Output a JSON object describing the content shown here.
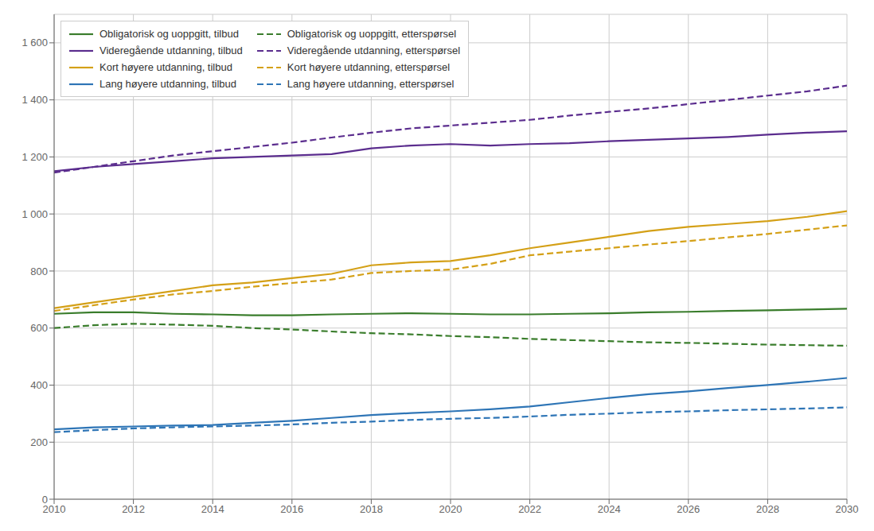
{
  "chart_data": {
    "type": "line",
    "x": [
      2010,
      2011,
      2012,
      2013,
      2014,
      2015,
      2016,
      2017,
      2018,
      2019,
      2020,
      2021,
      2022,
      2023,
      2024,
      2025,
      2026,
      2027,
      2028,
      2029,
      2030
    ],
    "series": [
      {
        "name": "Obligatorisk og uoppgitt, tilbud",
        "color": "#3a7d2c",
        "line_style": "solid",
        "values": [
          650,
          655,
          655,
          650,
          648,
          645,
          645,
          648,
          650,
          652,
          650,
          648,
          648,
          650,
          652,
          655,
          657,
          660,
          662,
          665,
          668
        ]
      },
      {
        "name": "Videregående utdanning, tilbud",
        "color": "#5b2d8e",
        "line_style": "solid",
        "values": [
          1150,
          1165,
          1175,
          1185,
          1195,
          1200,
          1205,
          1210,
          1230,
          1240,
          1245,
          1240,
          1245,
          1248,
          1255,
          1260,
          1265,
          1270,
          1278,
          1285,
          1290
        ]
      },
      {
        "name": "Kort høyere utdanning, tilbud",
        "color": "#d4a017",
        "line_style": "solid",
        "values": [
          670,
          690,
          710,
          730,
          750,
          760,
          775,
          790,
          820,
          830,
          835,
          855,
          880,
          900,
          920,
          940,
          955,
          965,
          975,
          990,
          1010
        ]
      },
      {
        "name": "Lang høyere utdanning, tilbud",
        "color": "#2e75b6",
        "line_style": "solid",
        "values": [
          245,
          252,
          255,
          258,
          260,
          268,
          275,
          285,
          295,
          302,
          308,
          315,
          325,
          340,
          355,
          368,
          378,
          390,
          400,
          412,
          425
        ]
      },
      {
        "name": "Obligatorisk og uoppgitt, etterspørsel",
        "color": "#3a7d2c",
        "line_style": "dashed",
        "values": [
          600,
          610,
          615,
          612,
          608,
          600,
          595,
          588,
          582,
          578,
          572,
          568,
          562,
          558,
          554,
          550,
          548,
          545,
          542,
          540,
          538
        ]
      },
      {
        "name": "Videregående utdanning, etterspørsel",
        "color": "#5b2d8e",
        "line_style": "dashed",
        "values": [
          1145,
          1165,
          1185,
          1205,
          1220,
          1235,
          1250,
          1268,
          1285,
          1300,
          1310,
          1320,
          1330,
          1345,
          1358,
          1370,
          1385,
          1400,
          1415,
          1430,
          1450
        ]
      },
      {
        "name": "Kort høyere utdanning, etterspørsel",
        "color": "#d4a017",
        "line_style": "dashed",
        "values": [
          660,
          680,
          700,
          718,
          730,
          745,
          758,
          770,
          793,
          800,
          805,
          825,
          855,
          868,
          880,
          893,
          905,
          918,
          930,
          945,
          960
        ]
      },
      {
        "name": "Lang høyere utdanning, etterspørsel",
        "color": "#2e75b6",
        "line_style": "dashed",
        "values": [
          235,
          242,
          248,
          252,
          255,
          258,
          262,
          268,
          272,
          278,
          282,
          285,
          290,
          296,
          300,
          305,
          308,
          312,
          315,
          318,
          322
        ]
      }
    ],
    "xlim": [
      2010,
      2030
    ],
    "xticks": [
      2010,
      2012,
      2014,
      2016,
      2018,
      2020,
      2022,
      2024,
      2026,
      2028,
      2030
    ],
    "ylim": [
      0,
      1700
    ],
    "yticks": [
      0,
      200,
      400,
      600,
      800,
      {
        "value": 1000,
        "label": "1 000"
      },
      {
        "value": 1200,
        "label": "1 200"
      },
      {
        "value": 1400,
        "label": "1 400"
      },
      {
        "value": 1600,
        "label": "1 600"
      }
    ],
    "grid": true,
    "legend": "upper left"
  }
}
